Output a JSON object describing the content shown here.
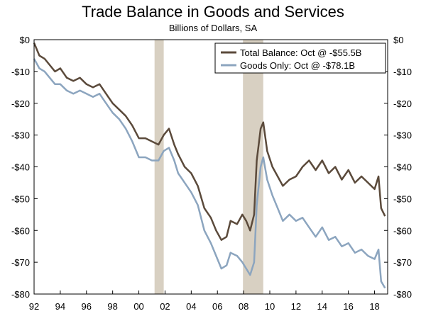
{
  "chart_data": {
    "type": "line",
    "title": "Trade Balance in Goods and Services",
    "subtitle": "Billions of Dollars, SA",
    "xlabel": "",
    "ylabel": "",
    "xlim": [
      1992,
      2019
    ],
    "ylim": [
      -80,
      0
    ],
    "y_ticks": [
      0,
      -10,
      -20,
      -30,
      -40,
      -50,
      -60,
      -70,
      -80
    ],
    "y_tick_labels": [
      "$0",
      "-$10",
      "-$20",
      "-$30",
      "-$40",
      "-$50",
      "-$60",
      "-$70",
      "-$80"
    ],
    "x_ticks": [
      1992,
      1994,
      1996,
      1998,
      2000,
      2002,
      2004,
      2006,
      2008,
      2010,
      2012,
      2014,
      2016,
      2018
    ],
    "x_tick_labels": [
      "92",
      "94",
      "96",
      "98",
      "00",
      "02",
      "04",
      "06",
      "08",
      "10",
      "12",
      "14",
      "16",
      "18"
    ],
    "recessions": [
      [
        2001.2,
        2001.9
      ],
      [
        2007.95,
        2009.5
      ]
    ],
    "legend_position": "top-right",
    "colors": {
      "total": "#5b4a3b",
      "goods": "#8ca5bf",
      "recession": "#d8d0c2"
    },
    "series": [
      {
        "name": "Total Balance: Oct @ -$55.5B",
        "key": "total",
        "x": [
          1992.0,
          1992.4,
          1992.8,
          1993.2,
          1993.6,
          1994.0,
          1994.5,
          1995.0,
          1995.5,
          1996.0,
          1996.5,
          1997.0,
          1997.5,
          1998.0,
          1998.5,
          1999.0,
          1999.5,
          2000.0,
          2000.5,
          2001.0,
          2001.5,
          2001.9,
          2002.3,
          2002.7,
          2003.0,
          2003.5,
          2004.0,
          2004.5,
          2005.0,
          2005.5,
          2005.9,
          2006.3,
          2006.7,
          2007.0,
          2007.5,
          2007.9,
          2008.2,
          2008.5,
          2008.8,
          2009.0,
          2009.3,
          2009.5,
          2009.8,
          2010.2,
          2010.6,
          2011.0,
          2011.5,
          2012.0,
          2012.5,
          2013.0,
          2013.5,
          2014.0,
          2014.5,
          2015.0,
          2015.5,
          2016.0,
          2016.5,
          2017.0,
          2017.5,
          2018.0,
          2018.3,
          2018.5,
          2018.8
        ],
        "values": [
          -1,
          -5,
          -6,
          -8,
          -10,
          -9,
          -12,
          -13,
          -12,
          -14,
          -15,
          -14,
          -17,
          -20,
          -22,
          -24,
          -27,
          -31,
          -31,
          -32,
          -33,
          -30,
          -28,
          -33,
          -36,
          -40,
          -42,
          -46,
          -53,
          -56,
          -60,
          -63,
          -62,
          -57,
          -58,
          -55,
          -57,
          -60,
          -55,
          -38,
          -28,
          -26,
          -35,
          -40,
          -43,
          -46,
          -44,
          -43,
          -40,
          -38,
          -41,
          -38,
          -42,
          -40,
          -44,
          -41,
          -45,
          -43,
          -45,
          -47,
          -43,
          -53,
          -55.5
        ]
      },
      {
        "name": "Goods Only: Oct @ -$78.1B",
        "key": "goods",
        "x": [
          1992.0,
          1992.4,
          1992.8,
          1993.2,
          1993.6,
          1994.0,
          1994.5,
          1995.0,
          1995.5,
          1996.0,
          1996.5,
          1997.0,
          1997.5,
          1998.0,
          1998.5,
          1999.0,
          1999.5,
          2000.0,
          2000.5,
          2001.0,
          2001.5,
          2001.9,
          2002.3,
          2002.7,
          2003.0,
          2003.5,
          2004.0,
          2004.5,
          2005.0,
          2005.5,
          2005.9,
          2006.3,
          2006.7,
          2007.0,
          2007.5,
          2007.9,
          2008.2,
          2008.5,
          2008.8,
          2009.0,
          2009.3,
          2009.5,
          2009.8,
          2010.2,
          2010.6,
          2011.0,
          2011.5,
          2012.0,
          2012.5,
          2013.0,
          2013.5,
          2014.0,
          2014.5,
          2015.0,
          2015.5,
          2016.0,
          2016.5,
          2017.0,
          2017.5,
          2018.0,
          2018.3,
          2018.5,
          2018.8
        ],
        "values": [
          -6,
          -9,
          -10,
          -12,
          -14,
          -14,
          -16,
          -17,
          -16,
          -17,
          -18,
          -17,
          -20,
          -23,
          -25,
          -28,
          -32,
          -37,
          -37,
          -38,
          -38,
          -35,
          -34,
          -38,
          -42,
          -45,
          -48,
          -52,
          -60,
          -64,
          -68,
          -72,
          -71,
          -67,
          -68,
          -70,
          -72,
          -74,
          -70,
          -52,
          -40,
          -37,
          -44,
          -49,
          -53,
          -57,
          -55,
          -57,
          -56,
          -59,
          -62,
          -59,
          -63,
          -62,
          -65,
          -64,
          -67,
          -66,
          -68,
          -69,
          -66,
          -76,
          -78.1
        ]
      }
    ]
  }
}
